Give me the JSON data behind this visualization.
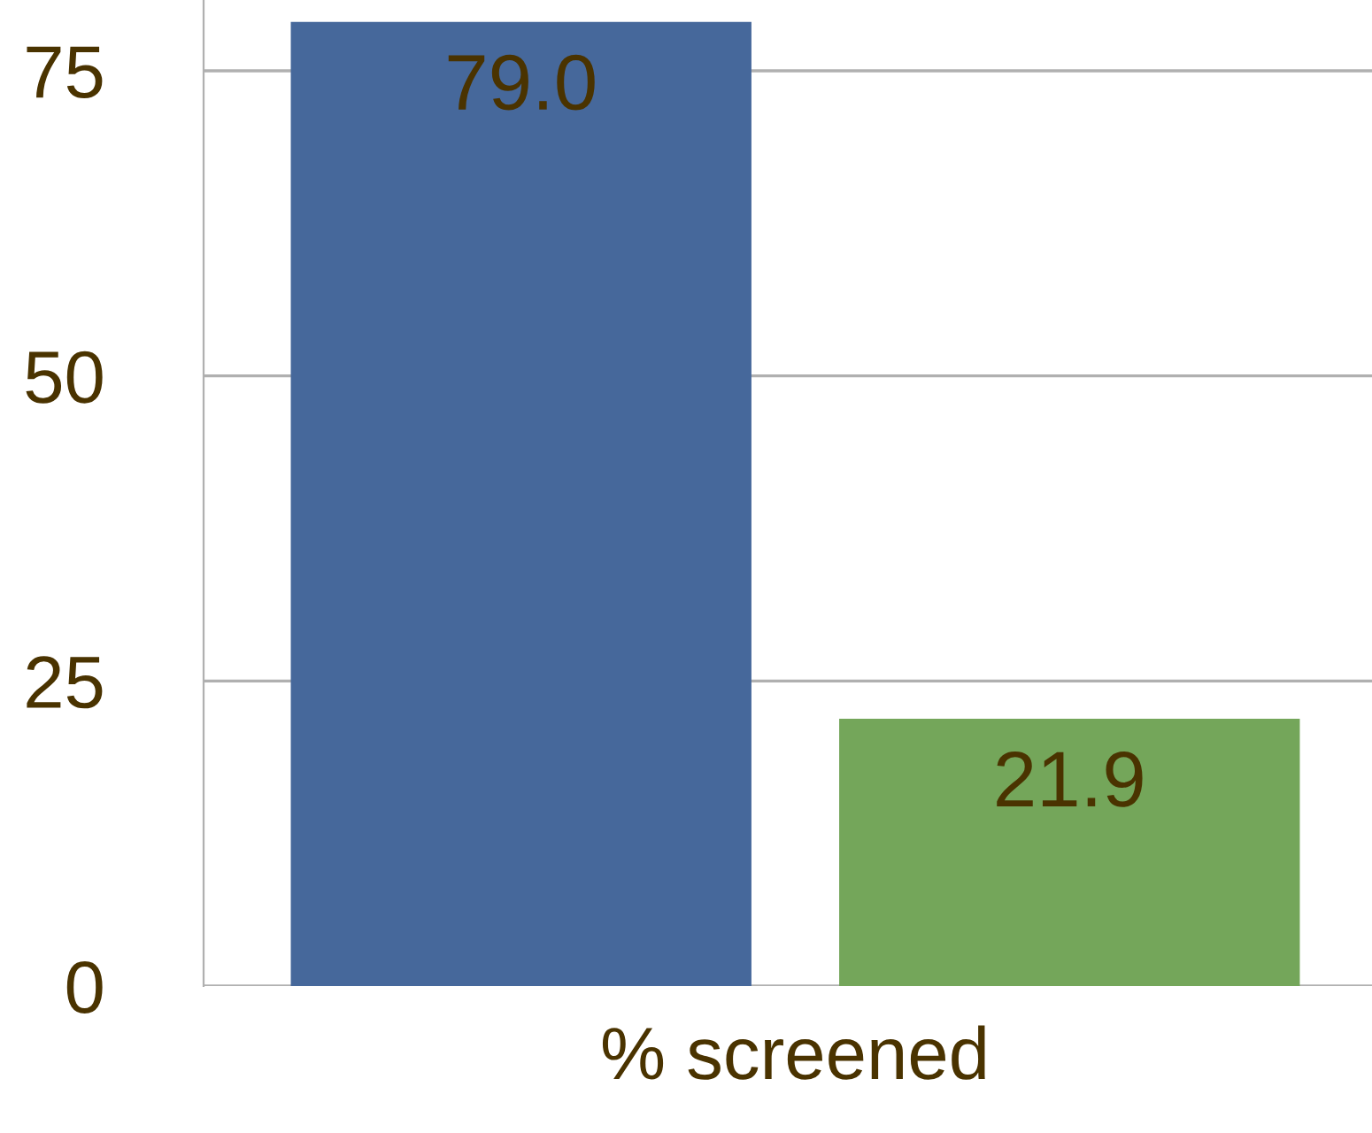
{
  "chart_data": {
    "type": "bar",
    "xlabel": "% screened",
    "categories": [
      null,
      null
    ],
    "values": [
      79.0,
      21.9
    ],
    "colors": [
      "#46689b",
      "#74a65a"
    ],
    "value_labels": [
      "79.0",
      "21.9"
    ],
    "ylim": [
      0,
      80.8
    ],
    "yticks": [
      0,
      25,
      50,
      75
    ],
    "grid": "y"
  }
}
